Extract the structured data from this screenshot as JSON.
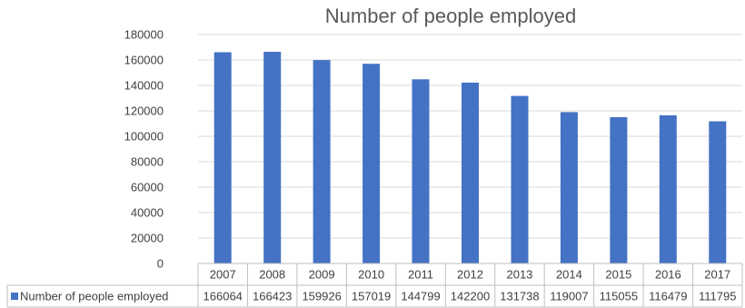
{
  "chart_data": {
    "type": "bar",
    "title": "Number of people employed",
    "categories": [
      "2007",
      "2008",
      "2009",
      "2010",
      "2011",
      "2012",
      "2013",
      "2014",
      "2015",
      "2016",
      "2017"
    ],
    "series": [
      {
        "name": "Number of people employed",
        "color": "#4472c4",
        "values": [
          166064,
          166423,
          159926,
          157019,
          144799,
          142200,
          131738,
          119007,
          115055,
          116479,
          111795
        ]
      }
    ],
    "ylim": [
      0,
      180000
    ],
    "yticks": [
      "0",
      "20000",
      "40000",
      "60000",
      "80000",
      "100000",
      "120000",
      "140000",
      "160000",
      "180000"
    ],
    "grid": true,
    "legend": "data-table-left"
  }
}
